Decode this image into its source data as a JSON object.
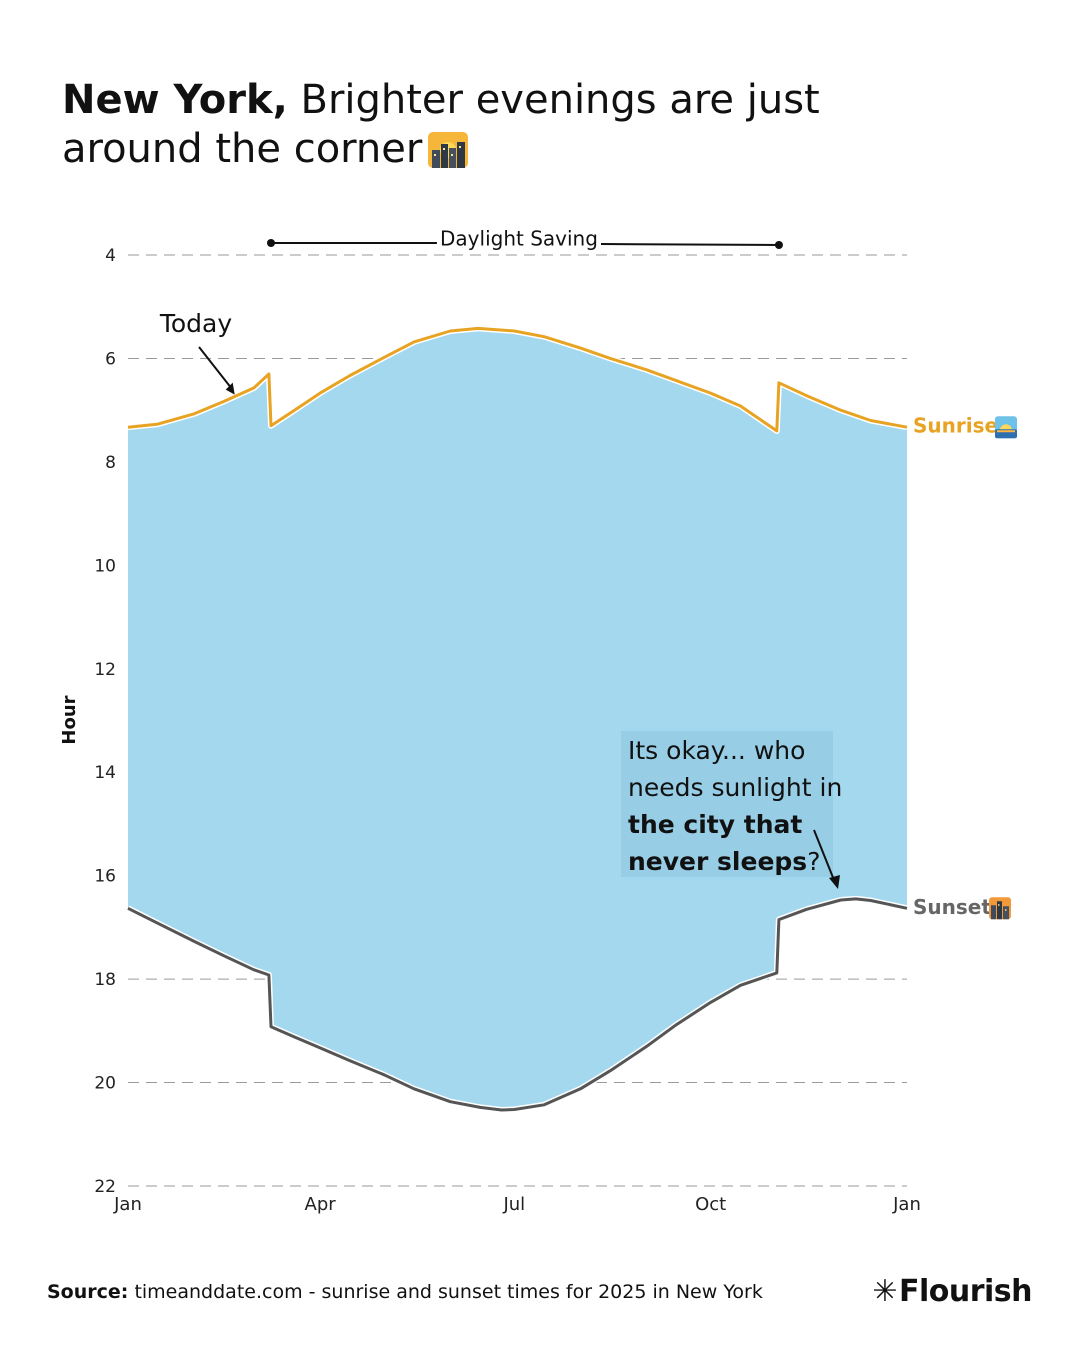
{
  "header": {
    "title_bold": "New York,",
    "title_rest": "Brighter evenings are just around the corner"
  },
  "footer": {
    "source_label": "Source:",
    "source_text": "timeanddate.com - sunrise and sunset times for 2025 in New York",
    "brand": "Flourish",
    "brand_mark": "✳"
  },
  "chart_data": {
    "type": "area",
    "ylabel": "Hour",
    "xlabel": "",
    "ylim": [
      22,
      4
    ],
    "y_reversed": true,
    "y_ticks": [
      4,
      6,
      8,
      10,
      12,
      14,
      16,
      18,
      20,
      22
    ],
    "x_ticks": [
      "Jan",
      "Apr",
      "Jul",
      "Oct",
      "Jan"
    ],
    "x_tick_dates": [
      "2025-01-01",
      "2025-04-01",
      "2025-07-01",
      "2025-10-01",
      "2026-01-01"
    ],
    "grid": true,
    "band_color": "#a3d8ef",
    "series": [
      {
        "name": "Sunrise",
        "color": "#e8a323",
        "dates": [
          "2025-01-01",
          "2025-01-15",
          "2025-02-01",
          "2025-02-15",
          "2025-03-01",
          "2025-03-08",
          "2025-03-09",
          "2025-03-20",
          "2025-04-01",
          "2025-04-15",
          "2025-05-01",
          "2025-05-15",
          "2025-06-01",
          "2025-06-14",
          "2025-07-01",
          "2025-07-15",
          "2025-08-01",
          "2025-08-15",
          "2025-09-01",
          "2025-09-15",
          "2025-10-01",
          "2025-10-15",
          "2025-11-01",
          "2025-11-02",
          "2025-11-15",
          "2025-12-01",
          "2025-12-15",
          "2026-01-01"
        ],
        "values": [
          7.33,
          7.27,
          7.07,
          6.83,
          6.57,
          6.3,
          7.3,
          7.0,
          6.67,
          6.33,
          5.98,
          5.68,
          5.47,
          5.42,
          5.47,
          5.58,
          5.8,
          6.0,
          6.22,
          6.43,
          6.67,
          6.92,
          7.4,
          6.47,
          6.72,
          7.0,
          7.2,
          7.33
        ]
      },
      {
        "name": "Sunset",
        "color": "#555555",
        "dates": [
          "2025-01-01",
          "2025-01-15",
          "2025-02-01",
          "2025-02-15",
          "2025-03-01",
          "2025-03-08",
          "2025-03-09",
          "2025-03-20",
          "2025-04-01",
          "2025-04-15",
          "2025-05-01",
          "2025-05-15",
          "2025-06-01",
          "2025-06-15",
          "2025-06-25",
          "2025-07-01",
          "2025-07-15",
          "2025-08-01",
          "2025-08-15",
          "2025-09-01",
          "2025-09-15",
          "2025-10-01",
          "2025-10-15",
          "2025-11-01",
          "2025-11-02",
          "2025-11-15",
          "2025-12-01",
          "2025-12-08",
          "2025-12-15",
          "2026-01-01"
        ],
        "values": [
          16.63,
          16.92,
          17.27,
          17.55,
          17.82,
          17.92,
          18.92,
          19.12,
          19.33,
          19.58,
          19.85,
          20.12,
          20.37,
          20.48,
          20.53,
          20.52,
          20.43,
          20.12,
          19.77,
          19.3,
          18.88,
          18.45,
          18.12,
          17.88,
          16.85,
          16.65,
          16.47,
          16.45,
          16.48,
          16.63
        ]
      }
    ],
    "annotations": {
      "today": "Today",
      "today_date": "2025-02-20",
      "today_value": 6.7,
      "dst_label": "Daylight Saving",
      "dst_start": "2025-03-09",
      "dst_end": "2025-11-02",
      "note_line1": "Its okay... who",
      "note_line2": "needs sunlight in",
      "note_bold1": "the city that",
      "note_bold2": "never sleeps",
      "note_tail": "?",
      "sunrise_label": "Sunrise",
      "sunset_label": "Sunset"
    }
  }
}
